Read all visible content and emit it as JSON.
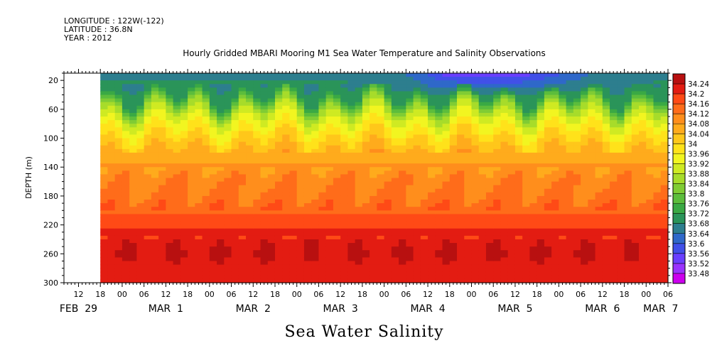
{
  "header": {
    "longitude": "LONGITUDE : 122W(-122)",
    "latitude": "LATITUDE : 36.8N",
    "year": "YEAR : 2012"
  },
  "chart_data": {
    "type": "heatmap",
    "title": "Hourly Gridded MBARI Mooring M1 Sea Water Temperature and Salinity Observations",
    "xlabel": "Sea Water Salinity",
    "ylabel": "DEPTH (m)",
    "y_range_m": [
      300,
      0
    ],
    "y_ticks": [
      20,
      60,
      100,
      140,
      180,
      220,
      260,
      300
    ],
    "x_range_hours_from_feb29_00": [
      -16,
      150
    ],
    "data_start_hour": -6,
    "x_hour_ticks": [
      "12",
      "18",
      "00",
      "06",
      "12",
      "18",
      "00",
      "06",
      "12",
      "18",
      "00",
      "06",
      "12",
      "18",
      "00",
      "06",
      "12",
      "18",
      "00",
      "06",
      "12",
      "18",
      "00",
      "06",
      "12",
      "18",
      "00",
      "06"
    ],
    "x_hour_tick_values": [
      -12,
      -6,
      0,
      6,
      12,
      18,
      24,
      30,
      36,
      42,
      48,
      54,
      60,
      66,
      72,
      78,
      84,
      90,
      96,
      102,
      108,
      114,
      120,
      126,
      132,
      138,
      144,
      150
    ],
    "x_date_labels": [
      {
        "text": "FEB 29",
        "hour": -12
      },
      {
        "text": "MAR 1",
        "hour": 12
      },
      {
        "text": "MAR 2",
        "hour": 36
      },
      {
        "text": "MAR 3",
        "hour": 60
      },
      {
        "text": "MAR 4",
        "hour": 84
      },
      {
        "text": "MAR 5",
        "hour": 108
      },
      {
        "text": "MAR 6",
        "hour": 132
      },
      {
        "text": "MAR 7",
        "hour": 148
      }
    ],
    "colorbar_levels": [
      33.48,
      33.52,
      33.56,
      33.6,
      33.64,
      33.68,
      33.72,
      33.76,
      33.8,
      33.84,
      33.88,
      33.92,
      33.96,
      34,
      34.04,
      34.08,
      34.12,
      34.16,
      34.2,
      34.24
    ],
    "colorbar_labels": [
      "34.24",
      "34.2",
      "34.16",
      "34.12",
      "34.08",
      "34.04",
      "34",
      "33.96",
      "33.92",
      "33.88",
      "33.84",
      "33.8",
      "33.76",
      "33.72",
      "33.68",
      "33.64",
      "33.6",
      "33.56",
      "33.52",
      "33.48"
    ],
    "colors": [
      "#cc00ee",
      "#9a33ff",
      "#6a3fff",
      "#4150e8",
      "#2f68c9",
      "#2d7e8e",
      "#2a9459",
      "#3aa944",
      "#5cbd3c",
      "#80cc34",
      "#a7dc2a",
      "#cfea22",
      "#f2f520",
      "#ffe21a",
      "#ffc71a",
      "#ffab1c",
      "#ff8e1c",
      "#ff6c1a",
      "#ff4a16",
      "#e31c12",
      "#b81010"
    ],
    "depth_profile": [
      {
        "depth": 10,
        "salinity": 33.68
      },
      {
        "depth": 20,
        "salinity": 33.68
      },
      {
        "depth": 40,
        "salinity": 33.7
      },
      {
        "depth": 60,
        "salinity": 33.86
      },
      {
        "depth": 80,
        "salinity": 33.94
      },
      {
        "depth": 100,
        "salinity": 34.0
      },
      {
        "depth": 120,
        "salinity": 34.05
      },
      {
        "depth": 140,
        "salinity": 34.09
      },
      {
        "depth": 160,
        "salinity": 34.11
      },
      {
        "depth": 180,
        "salinity": 34.13
      },
      {
        "depth": 200,
        "salinity": 34.15
      },
      {
        "depth": 220,
        "salinity": 34.19
      },
      {
        "depth": 240,
        "salinity": 34.23
      },
      {
        "depth": 260,
        "salinity": 34.25
      },
      {
        "depth": 280,
        "salinity": 34.22
      },
      {
        "depth": 300,
        "salinity": 34.21
      }
    ],
    "surface_minimum": {
      "date": "MAR 4-5",
      "salinity": 33.48
    }
  }
}
